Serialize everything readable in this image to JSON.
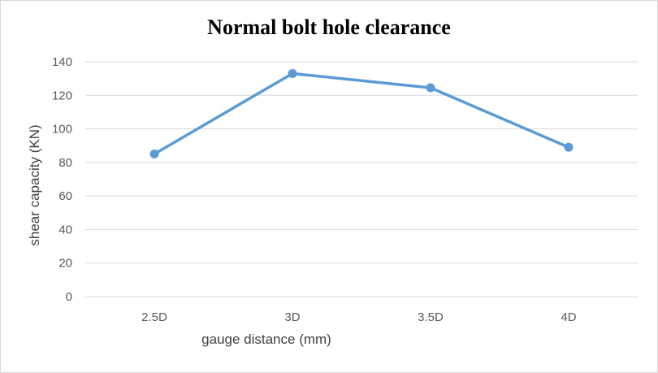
{
  "chart_data": {
    "type": "line",
    "title": "Normal bolt hole clearance",
    "xlabel": "gauge distance (mm)",
    "ylabel": "shear capacity (KN)",
    "categories": [
      "2.5D",
      "3D",
      "3.5D",
      "4D"
    ],
    "series": [
      {
        "values": [
          85,
          133,
          124.5,
          89
        ]
      }
    ],
    "ylim": [
      0,
      140
    ],
    "yticks": [
      "0",
      "20",
      "40",
      "60",
      "80",
      "100",
      "120",
      "140"
    ],
    "grid": true,
    "legend": "none",
    "colors": {
      "series": "#5b9bd5",
      "grid": "#d9d9d9",
      "axis_text": "#595959"
    }
  }
}
